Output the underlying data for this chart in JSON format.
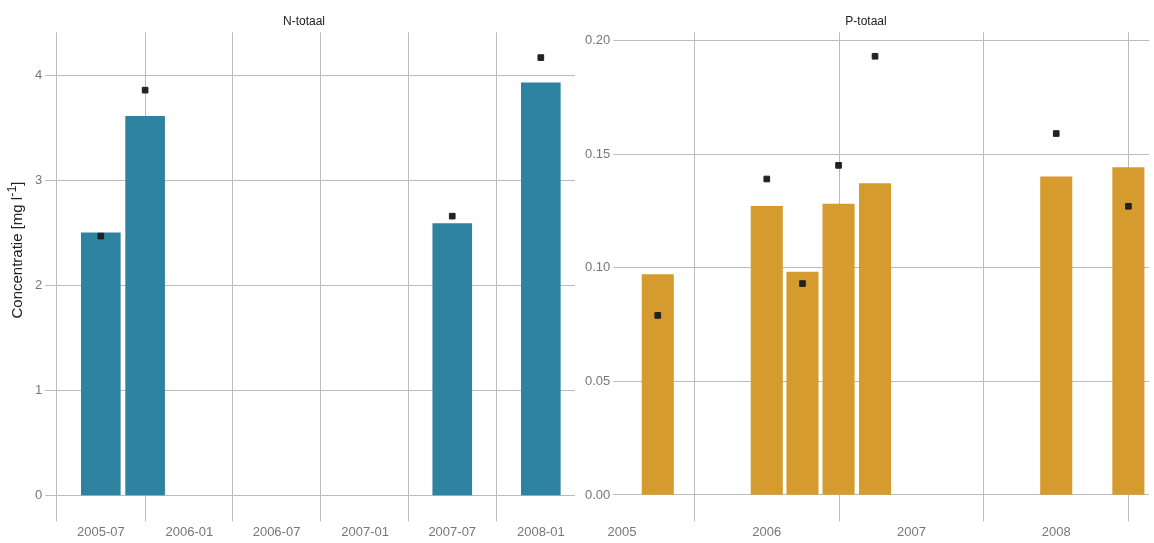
{
  "chart_data": [
    {
      "type": "bar",
      "title": "N-totaal",
      "ylabel": "Concentratie  [mg l$^{-1}$]",
      "grid": true,
      "xlim": [
        "2005-03-20",
        "2008-03-12"
      ],
      "xticks": [
        "2005-07",
        "2006-01",
        "2006-07",
        "2007-01",
        "2007-07",
        "2008-01"
      ],
      "ylim": [
        -0.19,
        4.41
      ],
      "yticks": [
        0,
        1,
        2,
        3,
        4
      ],
      "series": [
        {
          "color": "#2e84a0",
          "x": [
            "2005-07",
            "2005-10",
            "2007-07",
            "2008-01"
          ],
          "values": [
            2.5,
            3.61,
            2.59,
            3.93
          ]
        },
        {
          "type": "scatter",
          "marker": "square",
          "color": "#222222",
          "x": [
            "2005-07",
            "2005-10",
            "2007-07",
            "2008-01"
          ],
          "values": [
            2.47,
            3.86,
            2.66,
            4.17
          ]
        }
      ]
    },
    {
      "type": "bar",
      "title": "P-totaal",
      "grid": true,
      "xlim": [
        "2004-12-25",
        "2008-08-22"
      ],
      "xticks": [
        "2005",
        "2006",
        "2007",
        "2008"
      ],
      "ylim": [
        -0.009,
        0.2035
      ],
      "yticks": [
        {
          "value": 0,
          "label": "0.00"
        },
        {
          "value": 0.05,
          "label": "0.05"
        },
        {
          "value": 0.1,
          "label": "0.10"
        },
        {
          "value": 0.15,
          "label": "0.15"
        },
        {
          "value": 0.2,
          "label": "0.20"
        }
      ],
      "series": [
        {
          "color": "#d69b2e",
          "x": [
            "2005-04",
            "2006-01",
            "2006-04",
            "2006-07",
            "2006-10",
            "2008-01",
            "2008-07"
          ],
          "values": [
            0.097,
            0.127,
            0.098,
            0.128,
            0.137,
            0.14,
            0.144
          ]
        },
        {
          "type": "scatter",
          "marker": "square",
          "color": "#222222",
          "x": [
            "2005-04",
            "2006-01",
            "2006-04",
            "2006-07",
            "2006-10",
            "2008-01",
            "2008-07"
          ],
          "values": [
            0.079,
            0.139,
            0.093,
            0.145,
            0.193,
            0.159,
            0.127
          ]
        }
      ]
    }
  ]
}
